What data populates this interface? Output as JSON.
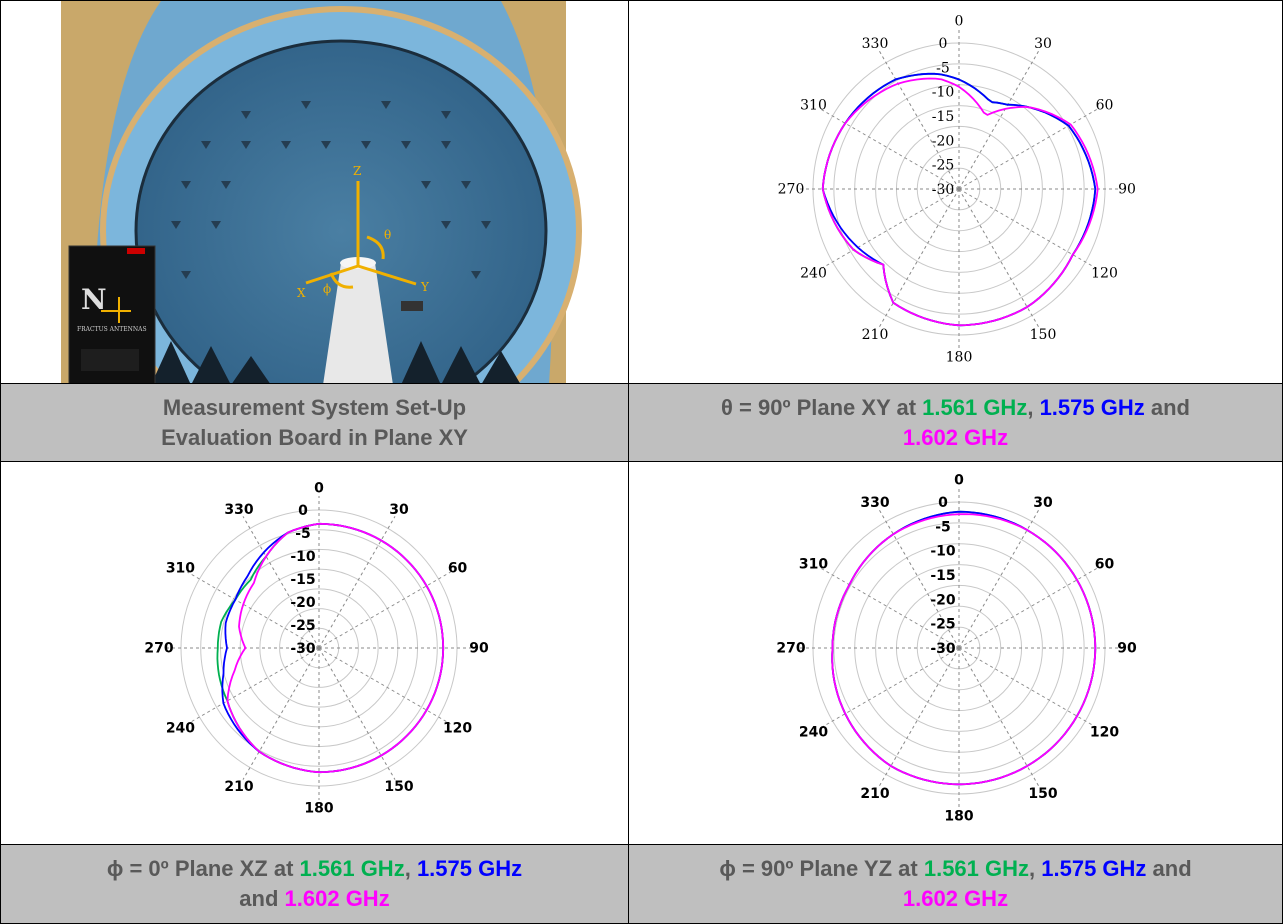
{
  "colors": {
    "s1561": "#00b050",
    "s1575": "#0000ff",
    "s1602": "#ff00ff",
    "caption_bg": "#bfbfbf",
    "caption_text": "#595959"
  },
  "photo": {
    "axis_labels": [
      "Z",
      "θ",
      "X",
      "ϕ",
      "Y"
    ],
    "board_logo": "FRACTUS ANTENNAS"
  },
  "captions": {
    "top_left": {
      "line1": "Measurement System Set-Up",
      "line2": "Evaluation Board in Plane XY"
    },
    "top_right": {
      "prefix": "θ = 90º Plane XY at ",
      "f1": "1.561 GHz",
      "sep1": ", ",
      "f2": "1.575 GHz",
      "sep2": " and",
      "f3": "1.602 GHz"
    },
    "bottom_left": {
      "prefix": "ϕ = 0º Plane XZ at ",
      "f1": "1.561 GHz",
      "sep1": ", ",
      "f2": "1.575 GHz",
      "and": "and ",
      "f3": "1.602 GHz"
    },
    "bottom_right": {
      "prefix": "ϕ = 90º Plane YZ at ",
      "f1": "1.561 GHz",
      "sep1": ", ",
      "f2": "1.575 GHz",
      "sep2": " and",
      "f3": "1.602 GHz"
    }
  },
  "chart_data": [
    {
      "type": "polar",
      "title": "",
      "angle_ticks": [
        "0",
        "30",
        "60",
        "90",
        "120",
        "150",
        "180",
        "210",
        "240",
        "270",
        "310",
        "330"
      ],
      "radial_ticks": [
        "0",
        "-5",
        "-10",
        "-15",
        "-20",
        "-25",
        "-30"
      ],
      "rlim": [
        -30,
        0
      ],
      "angles_deg": [
        0,
        20,
        30,
        40,
        60,
        90,
        120,
        150,
        180,
        210,
        225,
        240,
        270,
        300,
        330,
        350
      ],
      "series": [
        {
          "name": "1.561 GHz",
          "color": "#00b050",
          "values": [
            -7.5,
            -11,
            -10,
            -8,
            -4,
            -2,
            -3,
            -2,
            -2,
            -3,
            -8,
            -5,
            -2,
            -3,
            -4,
            -6
          ]
        },
        {
          "name": "1.575 GHz",
          "color": "#0000ff",
          "values": [
            -7.5,
            -11,
            -10,
            -8,
            -4,
            -2,
            -3,
            -2,
            -2,
            -3,
            -8,
            -6,
            -2,
            -3,
            -4,
            -6
          ]
        },
        {
          "name": "1.602 GHz",
          "color": "#ff00ff",
          "values": [
            -9,
            -14,
            -11,
            -8,
            -3.5,
            -1.5,
            -3,
            -2,
            -2,
            -3,
            -8,
            -5,
            -2,
            -3,
            -5,
            -7
          ]
        }
      ]
    },
    {
      "type": "polar",
      "title": "",
      "angle_ticks": [
        "0",
        "30",
        "60",
        "90",
        "120",
        "150",
        "180",
        "210",
        "240",
        "270",
        "310",
        "330"
      ],
      "radial_ticks": [
        "0",
        "-5",
        "-10",
        "-15",
        "-20",
        "-25",
        "-30"
      ],
      "rlim": [
        -30,
        0
      ],
      "angles_deg": [
        0,
        30,
        60,
        90,
        120,
        150,
        180,
        210,
        240,
        255,
        270,
        285,
        300,
        315,
        330,
        345
      ],
      "series": [
        {
          "name": "1.561 GHz",
          "color": "#00b050",
          "values": [
            -3,
            -3,
            -3,
            -3,
            -3,
            -3,
            -3,
            -4,
            -7,
            -7.5,
            -8,
            -8,
            -9,
            -9,
            -7,
            -4
          ]
        },
        {
          "name": "1.575 GHz",
          "color": "#0000ff",
          "values": [
            -3,
            -3,
            -3,
            -3,
            -3,
            -3,
            -3,
            -4,
            -6,
            -8.5,
            -10,
            -9,
            -9,
            -8,
            -6,
            -4
          ]
        },
        {
          "name": "1.602 GHz",
          "color": "#ff00ff",
          "values": [
            -3,
            -3,
            -3,
            -3,
            -3,
            -3,
            -3,
            -4,
            -7,
            -11,
            -14,
            -12,
            -11,
            -10,
            -7,
            -4
          ]
        }
      ]
    },
    {
      "type": "polar",
      "title": "",
      "angle_ticks": [
        "0",
        "30",
        "60",
        "90",
        "120",
        "150",
        "180",
        "210",
        "240",
        "270",
        "310",
        "330"
      ],
      "radial_ticks": [
        "0",
        "-5",
        "-10",
        "-15",
        "-20",
        "-25",
        "-30"
      ],
      "rlim": [
        -30,
        0
      ],
      "angles_deg": [
        0,
        30,
        60,
        90,
        120,
        150,
        180,
        210,
        240,
        270,
        300,
        330
      ],
      "series": [
        {
          "name": "1.561 GHz",
          "color": "#00b050",
          "values": [
            -2,
            -2,
            -2,
            -2,
            -2,
            -2,
            -2,
            -2,
            -3,
            -4,
            -4,
            -3
          ]
        },
        {
          "name": "1.575 GHz",
          "color": "#0000ff",
          "values": [
            -2,
            -2,
            -2,
            -2,
            -2,
            -2,
            -2,
            -2,
            -3,
            -4,
            -4,
            -3
          ]
        },
        {
          "name": "1.602 GHz",
          "color": "#ff00ff",
          "values": [
            -2.5,
            -2,
            -2,
            -2,
            -2,
            -2,
            -2,
            -2,
            -3,
            -4,
            -4,
            -3
          ]
        }
      ]
    }
  ]
}
